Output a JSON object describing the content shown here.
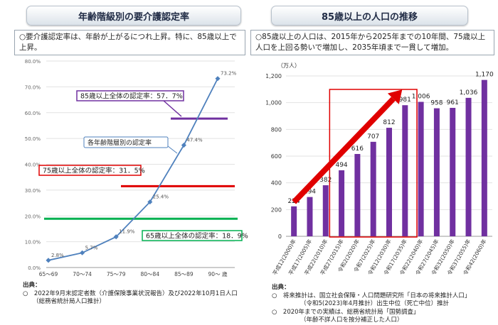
{
  "left": {
    "title": "年齢階級別の要介護認定率",
    "description": "○要介護認定率は、年齢が上がるにつれ上昇。特に、85歳以上で上昇。",
    "source_heading": "出典：",
    "source_lines": [
      "○　2022年9月末認定者数（介護保険事業状況報告）及び2022年10月1日人口",
      "（総務省統計局人口推計）"
    ]
  },
  "right": {
    "title": "85歳以上の人口の推移",
    "description": "○85歳以上の人口は、2015年から2025年までの10年間、75歳以上人口を上回る勢いで増加し、2035年頃まで一貫して増加。",
    "source_heading": "出典：",
    "source_lines": [
      "○　将来推計は、国立社会保障・人口問題研究所「日本の将来推計人口」",
      "（令和5(2023)年4月推計）出生中位（死亡中位）推計",
      "○　2020年までの実績は、総務省統計局「国勢調査」",
      "（年齢不詳人口を按分補正した人口）"
    ]
  },
  "chart_data": [
    {
      "type": "line",
      "title": "年齢階級別の要介護認定率",
      "categories": [
        "65〜69",
        "70〜74",
        "75〜79",
        "80〜84",
        "85〜89",
        "90〜 歳"
      ],
      "series": [
        {
          "name": "各年齢階層別の認定率",
          "values": [
            2.8,
            5.7,
            11.9,
            25.4,
            47.4,
            73.2
          ]
        }
      ],
      "value_labels": [
        "2.8%",
        "5.7%",
        "11.9%",
        "25.4%",
        "47.4%",
        "73.2%"
      ],
      "y_ticks": [
        "0.0%",
        "10.0%",
        "20.0%",
        "30.0%",
        "40.0%",
        "50.0%",
        "60.0%",
        "70.0%",
        "80.0%"
      ],
      "ylim": [
        0,
        80
      ],
      "reference_lines": [
        {
          "label": "85歳以上全体の認定率：57．7%",
          "value": 57.7,
          "color": "#7030a0"
        },
        {
          "label": "75歳以上全体の認定率：31．5%",
          "value": 31.5,
          "color": "#e00000"
        },
        {
          "label": "65歳以上全体の認定率：18．9%",
          "value": 18.9,
          "color": "#00b050"
        }
      ],
      "line_color": "#4f81bd"
    },
    {
      "type": "bar",
      "title": "85歳以上の人口の推移",
      "ylabel": "（万人）",
      "categories": [
        "平成12(2000)年",
        "平成17(2005)年",
        "平成22(2010)年",
        "平成27(2015)年",
        "令和2(2020)年",
        "令和7(2025)年",
        "令和12(2030)年",
        "令和17(2035)年",
        "令和22(2040)年",
        "令和27(2045)年",
        "令和32(2050)年",
        "令和37(2055)年",
        "令和42(2060)年"
      ],
      "values": [
        224,
        294,
        382,
        494,
        616,
        707,
        812,
        981,
        1006,
        958,
        961,
        1036,
        1170
      ],
      "value_labels": [
        "224",
        "294",
        "382",
        "494",
        "616",
        "707",
        "812",
        "981",
        "1,006",
        "958",
        "961",
        "1,036",
        "1,170"
      ],
      "y_ticks": [
        "0",
        "200",
        "400",
        "600",
        "800",
        "1,000",
        "1,200"
      ],
      "ylim": [
        0,
        1200
      ],
      "bar_color": "#7030a0",
      "highlight_color": "#e00000",
      "highlight_range": [
        "平成27(2015)年",
        "令和17(2035)年"
      ]
    }
  ]
}
